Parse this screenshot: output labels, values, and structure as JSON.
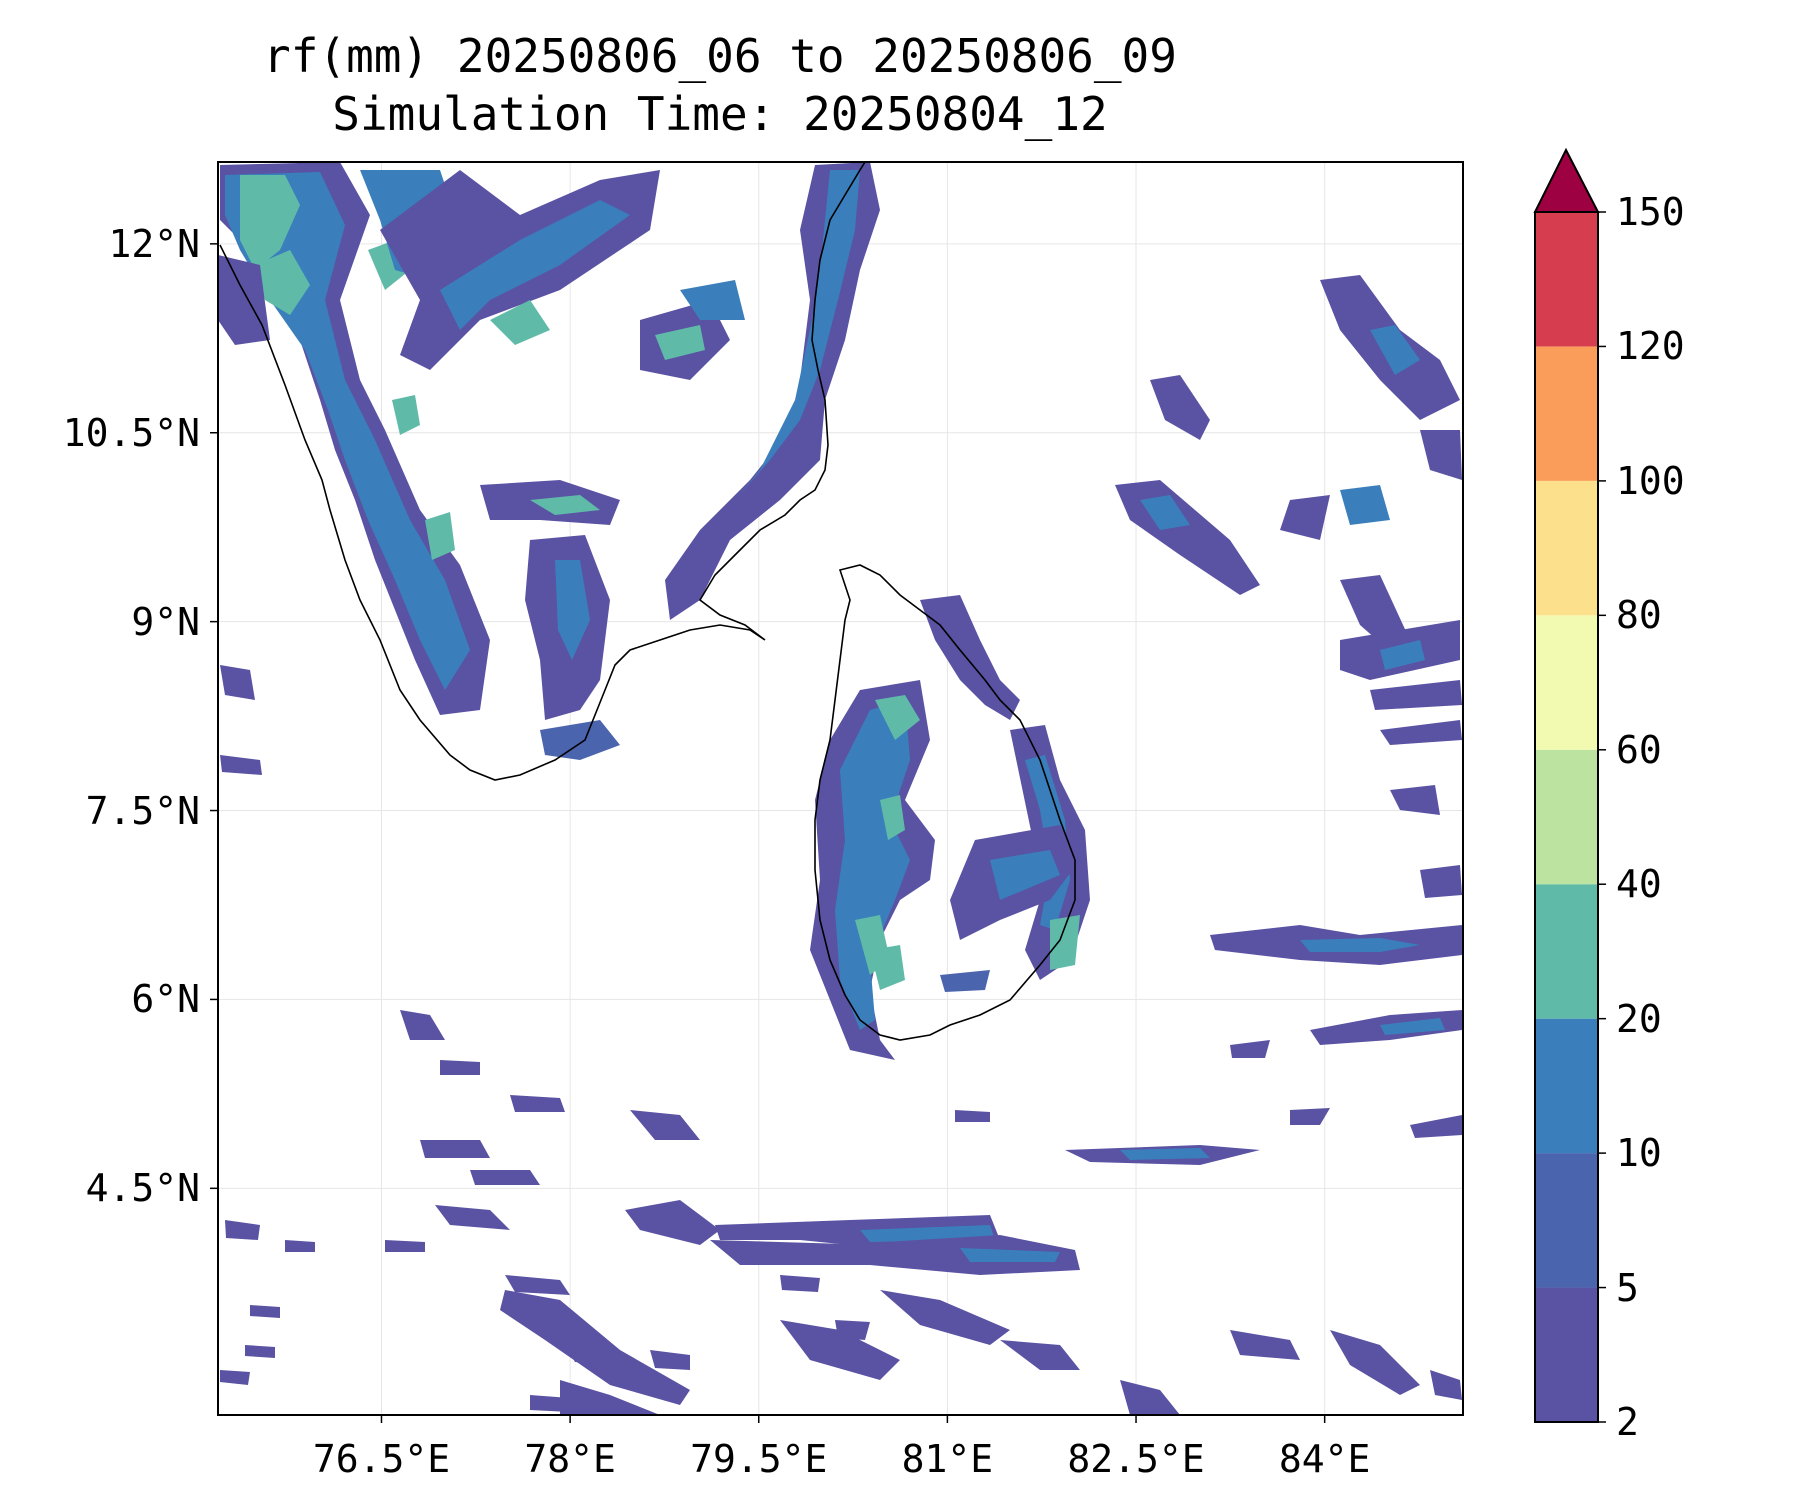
{
  "title": {
    "line1": "rf(mm) 20250806_06 to 20250806_09",
    "line2": "Simulation Time: 20250804_12"
  },
  "map": {
    "lon_range": [
      75.2,
      85.1
    ],
    "lat_range": [
      2.7,
      12.65
    ],
    "gridlines": true,
    "xticks": [
      {
        "value": 76.5,
        "label": "76.5°E"
      },
      {
        "value": 78.0,
        "label": "78°E"
      },
      {
        "value": 79.5,
        "label": "79.5°E"
      },
      {
        "value": 81.0,
        "label": "81°E"
      },
      {
        "value": 82.5,
        "label": "82.5°E"
      },
      {
        "value": 84.0,
        "label": "84°E"
      }
    ],
    "yticks": [
      {
        "value": 12.0,
        "label": "12°N"
      },
      {
        "value": 10.5,
        "label": "10.5°N"
      },
      {
        "value": 9.0,
        "label": "9°N"
      },
      {
        "value": 7.5,
        "label": "7.5°N"
      },
      {
        "value": 6.0,
        "label": "6°N"
      },
      {
        "value": 4.5,
        "label": "4.5°N"
      }
    ]
  },
  "colorbar": {
    "extend": "max",
    "levels": [
      {
        "label": "2",
        "color": "#5a52a3"
      },
      {
        "label": "5",
        "color": "#4a64ae"
      },
      {
        "label": "10",
        "color": "#3a7fbc"
      },
      {
        "label": "20",
        "color": "#5fbba8"
      },
      {
        "label": "40",
        "color": "#bde3a0"
      },
      {
        "label": "60",
        "color": "#f2f9b0"
      },
      {
        "label": "80",
        "color": "#fde08c"
      },
      {
        "label": "100",
        "color": "#fa9d5a"
      },
      {
        "label": "120",
        "color": "#d63e50"
      },
      {
        "label": "150",
        "color": "#9e0142"
      }
    ]
  }
}
